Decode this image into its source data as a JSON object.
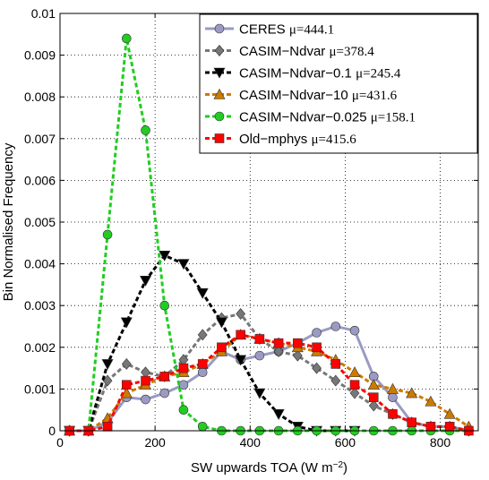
{
  "chart_data": {
    "type": "line",
    "xlabel": {
      "text": "SW upwards TOA (W m",
      "sup": "−2",
      "close": ")"
    },
    "ylabel": "Bin Normalised Frequency",
    "xlim": [
      0,
      880
    ],
    "ylim": [
      0,
      0.01
    ],
    "x_ticks": [
      0,
      200,
      400,
      600,
      800
    ],
    "y_ticks": [
      0,
      0.001,
      0.002,
      0.003,
      0.004,
      0.005,
      0.006,
      0.007,
      0.008,
      0.009,
      0.01
    ],
    "x_tick_labels": [
      "0",
      "200",
      "400",
      "600",
      "800"
    ],
    "y_tick_labels": [
      "0",
      "0.001",
      "0.002",
      "0.003",
      "0.004",
      "0.005",
      "0.006",
      "0.007",
      "0.008",
      "0.009",
      "0.01"
    ],
    "grid": true,
    "legend_position": "top-right",
    "series": [
      {
        "name": "CERES",
        "mu_label": "μ=444.1",
        "color": "#9a9ac4",
        "marker": "circle",
        "dash": "solid",
        "x": [
          20,
          60,
          100,
          140,
          180,
          220,
          260,
          300,
          340,
          380,
          420,
          460,
          500,
          540,
          580,
          620,
          660,
          700,
          740,
          780,
          820,
          860
        ],
        "values": [
          0,
          0,
          0.0002,
          0.0008,
          0.00075,
          0.0009,
          0.0011,
          0.0014,
          0.0019,
          0.0017,
          0.0018,
          0.0019,
          0.0021,
          0.00235,
          0.0025,
          0.0024,
          0.0013,
          0.0008,
          0.0002,
          0.0001,
          0.0001,
          0
        ]
      },
      {
        "name": "CASIM−Ndvar",
        "mu_label": "μ=378.4",
        "color": "#777777",
        "marker": "diamond",
        "dash": "dashed",
        "x": [
          20,
          60,
          100,
          140,
          180,
          220,
          260,
          300,
          340,
          380,
          420,
          460,
          500,
          540,
          580,
          620,
          660,
          700,
          740,
          780,
          820,
          860
        ],
        "values": [
          0,
          0,
          0.0012,
          0.0016,
          0.0014,
          0.0013,
          0.0017,
          0.0023,
          0.0027,
          0.0028,
          0.0022,
          0.0019,
          0.0018,
          0.0015,
          0.0012,
          0.0009,
          0.0006,
          0.0004,
          0.0002,
          0.0001,
          0.0001,
          0
        ]
      },
      {
        "name": "CASIM−Ndvar−0.1",
        "mu_label": "μ=245.4",
        "color": "#000000",
        "marker": "triangle-down",
        "dash": "dashed",
        "x": [
          20,
          60,
          100,
          140,
          180,
          220,
          260,
          300,
          340,
          380,
          420,
          460,
          500,
          540,
          580,
          620
        ],
        "values": [
          0,
          0,
          0.0016,
          0.0026,
          0.0036,
          0.0042,
          0.004,
          0.0033,
          0.0026,
          0.0017,
          0.0009,
          0.0004,
          0.0001,
          0,
          0,
          0
        ]
      },
      {
        "name": "CASIM−Ndvar−10",
        "mu_label": "μ=431.6",
        "color": "#cc7a00",
        "marker": "triangle-up",
        "dash": "dashed",
        "x": [
          20,
          60,
          100,
          140,
          180,
          220,
          260,
          300,
          340,
          380,
          420,
          460,
          500,
          540,
          580,
          620,
          660,
          700,
          740,
          780,
          820,
          860
        ],
        "values": [
          0,
          0,
          0.0003,
          0.0009,
          0.0011,
          0.0013,
          0.0014,
          0.0016,
          0.0019,
          0.0023,
          0.0022,
          0.0021,
          0.002,
          0.0019,
          0.0017,
          0.0014,
          0.0011,
          0.001,
          0.0009,
          0.0007,
          0.0004,
          0.0001
        ]
      },
      {
        "name": "CASIM−Ndvar−0.025",
        "mu_label": "μ=158.1",
        "color": "#22cc22",
        "marker": "circle",
        "dash": "dashed",
        "x": [
          20,
          60,
          100,
          140,
          180,
          220,
          260,
          300,
          340,
          380,
          420,
          460,
          500,
          540,
          580,
          620,
          660,
          700,
          740,
          780,
          820,
          860
        ],
        "values": [
          0,
          0,
          0.0047,
          0.0094,
          0.0072,
          0.003,
          0.0005,
          0.0001,
          0,
          0,
          0,
          0,
          0,
          0,
          0,
          0,
          0,
          0,
          0,
          0,
          0,
          0
        ]
      },
      {
        "name": "Old−mphys",
        "mu_label": "μ=415.6",
        "color": "#ff0000",
        "marker": "square",
        "dash": "dashed",
        "x": [
          20,
          60,
          100,
          140,
          180,
          220,
          260,
          300,
          340,
          380,
          420,
          460,
          500,
          540,
          580,
          620,
          660,
          700,
          740,
          780,
          820,
          860
        ],
        "values": [
          0,
          0,
          0.0001,
          0.0011,
          0.0012,
          0.0013,
          0.0015,
          0.0016,
          0.002,
          0.0023,
          0.0022,
          0.0021,
          0.0021,
          0.002,
          0.0016,
          0.0011,
          0.0008,
          0.0004,
          0.0002,
          0.0001,
          0.0001,
          0
        ]
      }
    ]
  }
}
